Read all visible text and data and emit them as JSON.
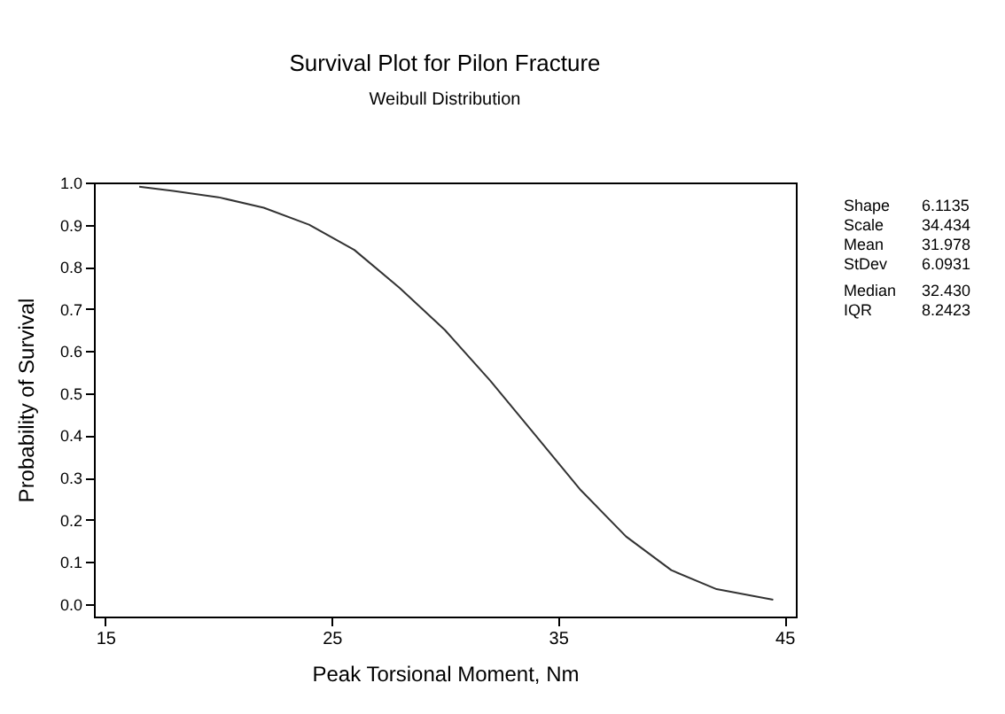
{
  "chart_data": {
    "type": "line",
    "title": "Survival Plot for Pilon Fracture",
    "subtitle": "Weibull Distribution",
    "xlabel": "Peak Torsional Moment, Nm",
    "ylabel": "Probability of Survival",
    "x": [
      16.5,
      18,
      20,
      22,
      24,
      26,
      28,
      30,
      32,
      34,
      36,
      38,
      40,
      42,
      44.5
    ],
    "series": [
      {
        "color": "#333333",
        "values": [
          0.99,
          0.98,
          0.965,
          0.94,
          0.9,
          0.84,
          0.75,
          0.65,
          0.53,
          0.4,
          0.27,
          0.16,
          0.08,
          0.035,
          0.01
        ]
      }
    ],
    "xlim": [
      14.5,
      45.5
    ],
    "xticks": [
      15,
      25,
      35,
      45
    ],
    "ylim": [
      -0.03,
      1.0
    ],
    "yticks": [
      {
        "value": 0,
        "label": "0.0"
      },
      0.1,
      0.2,
      0.3,
      0.4,
      0.5,
      0.6,
      0.7,
      0.8,
      0.9,
      {
        "value": 1,
        "label": "1.0"
      }
    ],
    "grid": false,
    "marker": "none",
    "line_style": "solid",
    "annotations": [
      "Shape",
      "6.1135",
      "Scale",
      "34.434",
      "Mean",
      "31.978",
      "StDev",
      "6.0931",
      "Median",
      "32.430",
      "IQR",
      "8.2423"
    ]
  }
}
